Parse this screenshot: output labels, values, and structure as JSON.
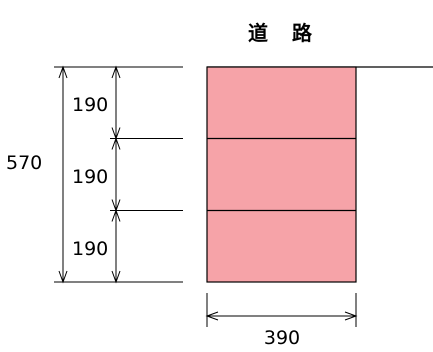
{
  "title": "道　路",
  "dimensions": {
    "total_height": "570",
    "layer_heights": [
      "190",
      "190",
      "190"
    ],
    "width": "390"
  },
  "colors": {
    "block_fill": "#f6a3a8",
    "line": "#000000",
    "background": "#ffffff"
  }
}
